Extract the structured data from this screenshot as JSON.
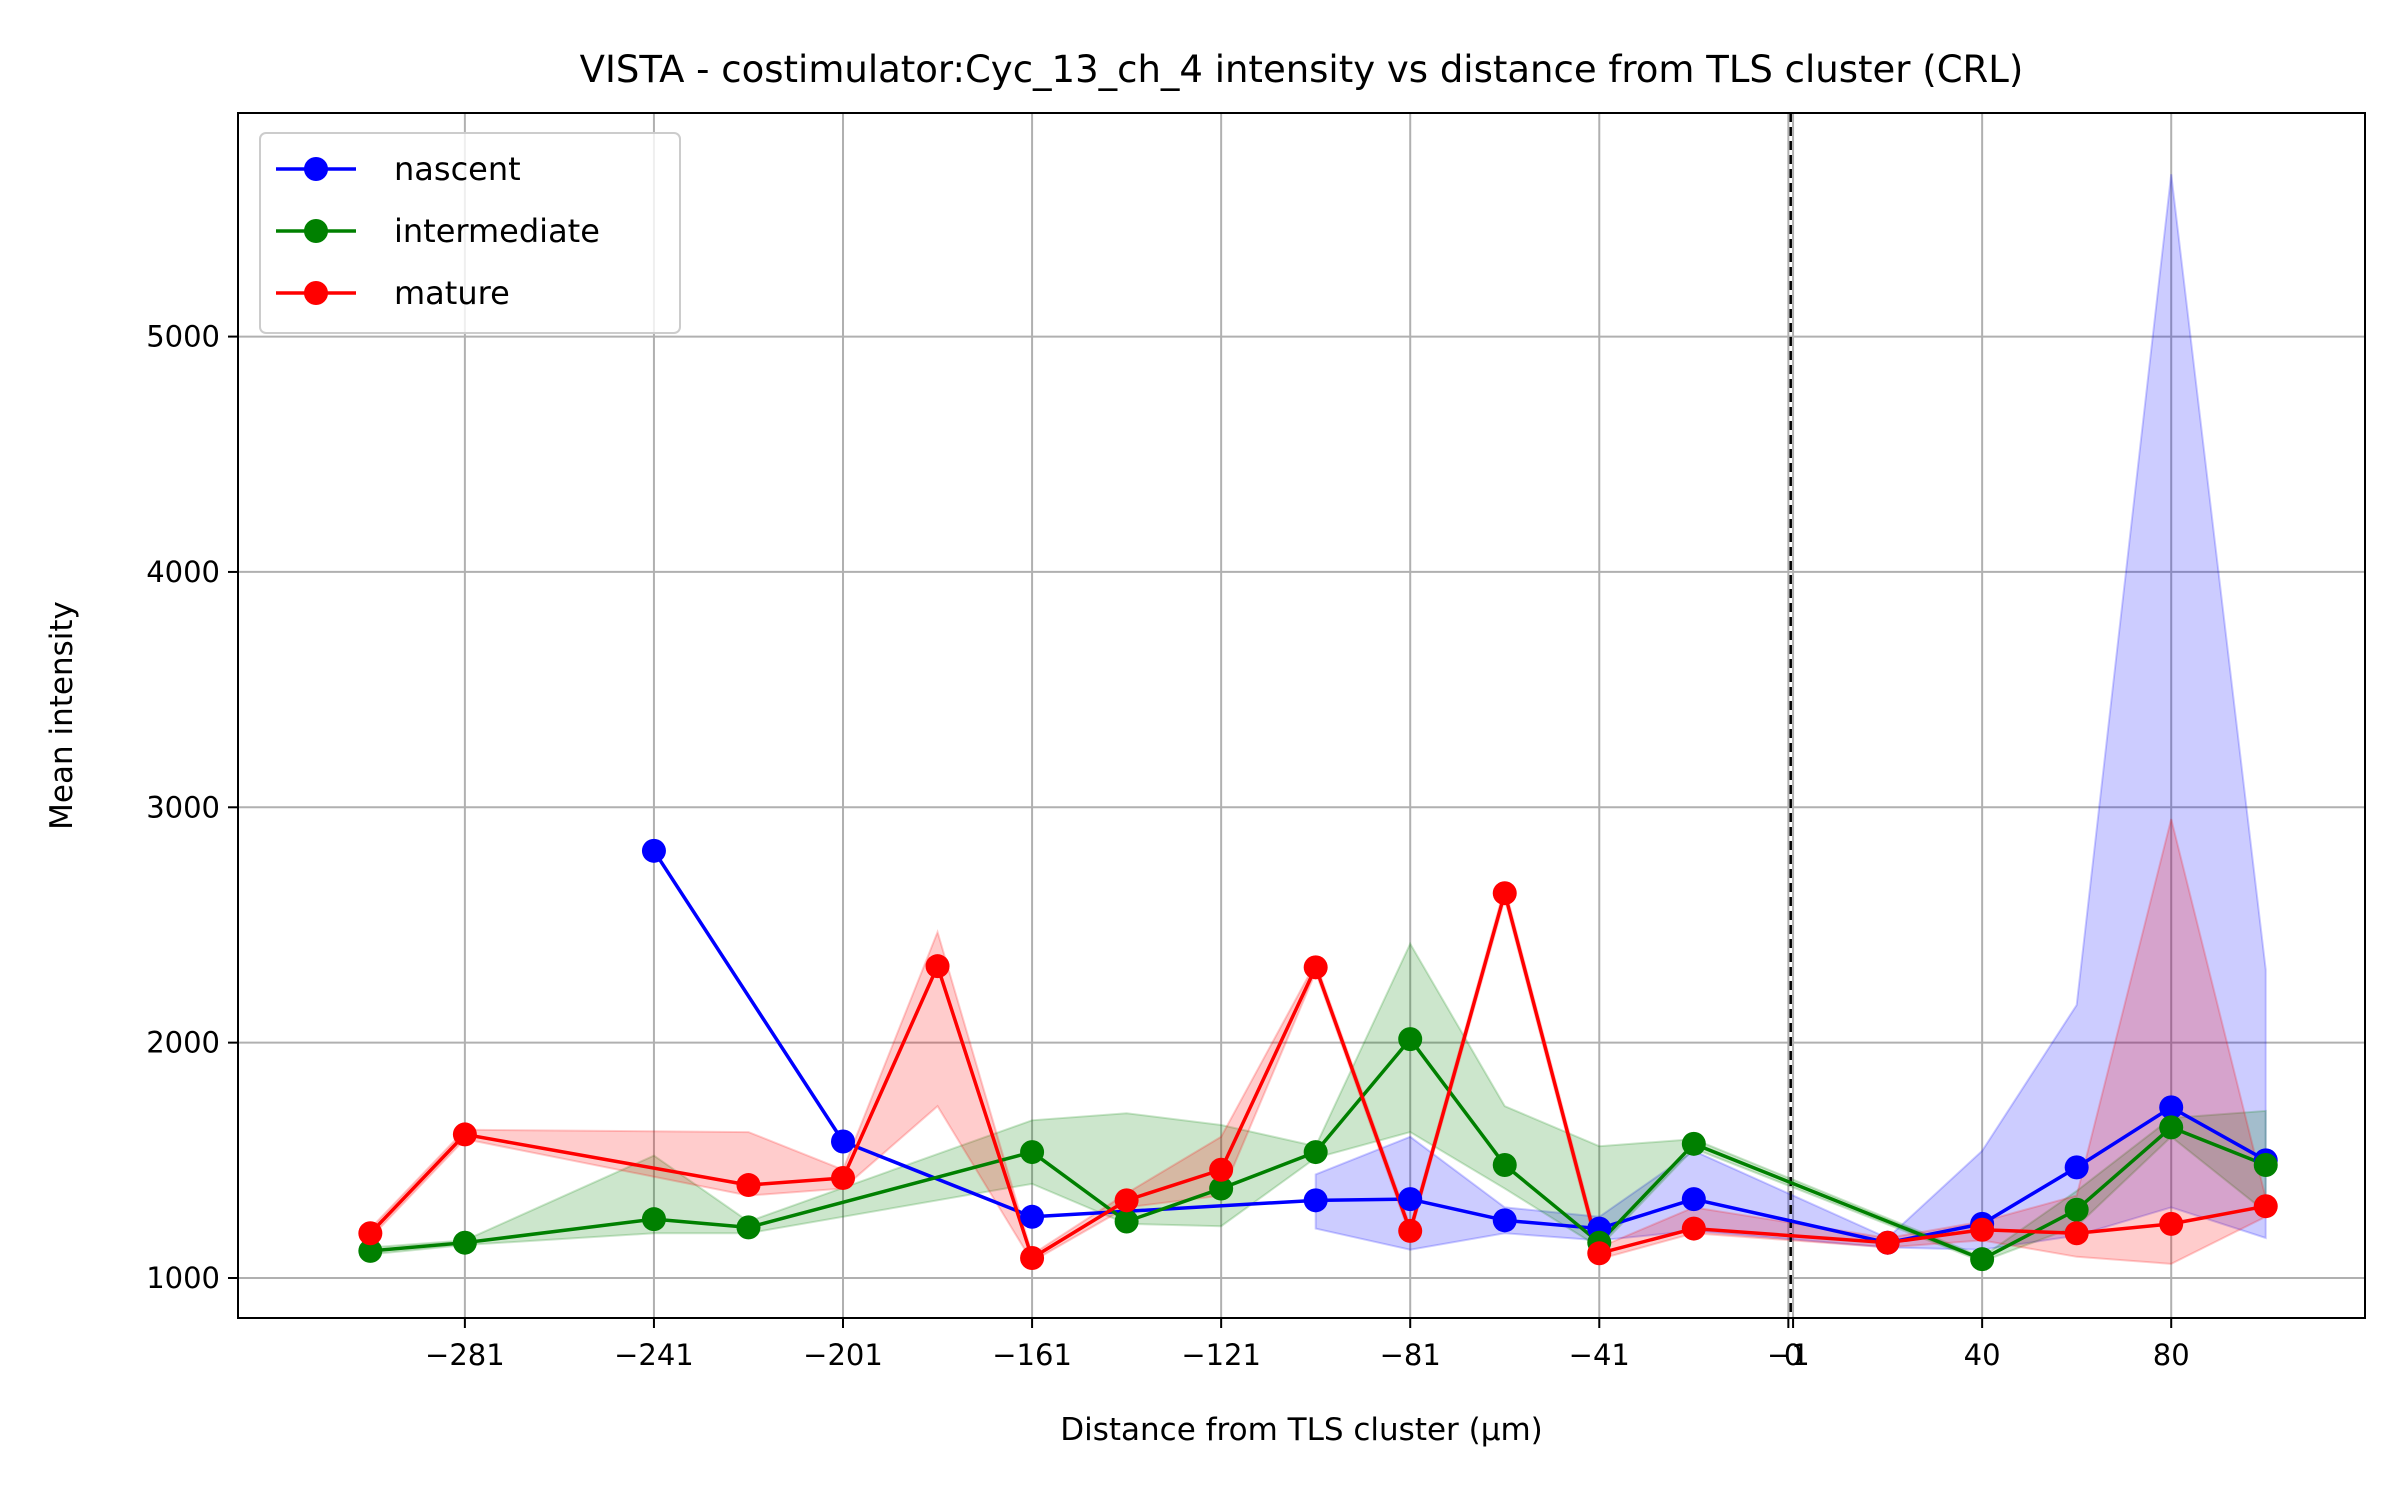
{
  "chart_data": {
    "type": "line",
    "title": "VISTA - costimulator:Cyc_13_ch_4 intensity vs distance from TLS cluster (CRL)",
    "xlabel": "Distance from TLS cluster (μm)",
    "ylabel": "Mean intensity",
    "xlim": [
      -329,
      121
    ],
    "ylim": [
      830,
      5950
    ],
    "grid": true,
    "legend_position": "top-left",
    "x_ticks": [
      {
        "value": -281,
        "label": "−281"
      },
      {
        "value": -241,
        "label": "−241"
      },
      {
        "value": -201,
        "label": "−201"
      },
      {
        "value": -161,
        "label": "−161"
      },
      {
        "value": -121,
        "label": "−121"
      },
      {
        "value": -81,
        "label": "−81"
      },
      {
        "value": -41,
        "label": "−41"
      },
      {
        "value": -1,
        "label": "−1"
      },
      {
        "value": 0,
        "label": "0"
      },
      {
        "value": 40,
        "label": "40"
      },
      {
        "value": 80,
        "label": "80"
      }
    ],
    "y_ticks": [
      {
        "value": 1000,
        "label": "1000"
      },
      {
        "value": 2000,
        "label": "2000"
      },
      {
        "value": 3000,
        "label": "3000"
      },
      {
        "value": 4000,
        "label": "4000"
      },
      {
        "value": 5000,
        "label": "5000"
      }
    ],
    "reference_line_x": -0.5,
    "series": [
      {
        "name": "nascent",
        "color": "#0000ff",
        "points": [
          {
            "x": -241,
            "y": 2815
          },
          {
            "x": -201,
            "y": 1580
          },
          {
            "x": -161,
            "y": 1260
          },
          {
            "x": -101,
            "y": 1330
          },
          {
            "x": -81,
            "y": 1335
          },
          {
            "x": -61,
            "y": 1245
          },
          {
            "x": -41,
            "y": 1210
          },
          {
            "x": -21,
            "y": 1335
          },
          {
            "x": 20,
            "y": 1150
          },
          {
            "x": 40,
            "y": 1230
          },
          {
            "x": 60,
            "y": 1470
          },
          {
            "x": 80,
            "y": 1725
          },
          {
            "x": 100,
            "y": 1500
          }
        ],
        "band": [
          {
            "x": -101,
            "lo": 1210,
            "hi": 1440
          },
          {
            "x": -81,
            "lo": 1120,
            "hi": 1600
          },
          {
            "x": -61,
            "lo": 1190,
            "hi": 1300
          },
          {
            "x": -41,
            "lo": 1160,
            "hi": 1260
          },
          {
            "x": -21,
            "lo": 1200,
            "hi": 1540
          },
          {
            "x": 20,
            "lo": 1130,
            "hi": 1170
          },
          {
            "x": 40,
            "lo": 1120,
            "hi": 1540
          },
          {
            "x": 60,
            "lo": 1180,
            "hi": 2160
          },
          {
            "x": 80,
            "lo": 1300,
            "hi": 5690
          },
          {
            "x": 100,
            "lo": 1170,
            "hi": 2310
          }
        ]
      },
      {
        "name": "intermediate",
        "color": "#008000",
        "points": [
          {
            "x": -301,
            "y": 1115
          },
          {
            "x": -281,
            "y": 1150
          },
          {
            "x": -241,
            "y": 1250
          },
          {
            "x": -221,
            "y": 1215
          },
          {
            "x": -161,
            "y": 1535
          },
          {
            "x": -141,
            "y": 1240
          },
          {
            "x": -121,
            "y": 1380
          },
          {
            "x": -101,
            "y": 1535
          },
          {
            "x": -81,
            "y": 2015
          },
          {
            "x": -61,
            "y": 1480
          },
          {
            "x": -41,
            "y": 1150
          },
          {
            "x": -21,
            "y": 1570
          },
          {
            "x": 40,
            "y": 1080
          },
          {
            "x": 60,
            "y": 1290
          },
          {
            "x": 80,
            "y": 1640
          },
          {
            "x": 100,
            "y": 1480
          }
        ],
        "band": [
          {
            "x": -301,
            "lo": 1100,
            "hi": 1130
          },
          {
            "x": -281,
            "lo": 1140,
            "hi": 1160
          },
          {
            "x": -241,
            "lo": 1190,
            "hi": 1520
          },
          {
            "x": -221,
            "lo": 1190,
            "hi": 1240
          },
          {
            "x": -161,
            "lo": 1400,
            "hi": 1670
          },
          {
            "x": -141,
            "lo": 1230,
            "hi": 1700
          },
          {
            "x": -121,
            "lo": 1220,
            "hi": 1650
          },
          {
            "x": -101,
            "lo": 1510,
            "hi": 1560
          },
          {
            "x": -81,
            "lo": 1620,
            "hi": 2420
          },
          {
            "x": -61,
            "lo": 1380,
            "hi": 1730
          },
          {
            "x": -41,
            "lo": 1130,
            "hi": 1560
          },
          {
            "x": -21,
            "lo": 1550,
            "hi": 1590
          },
          {
            "x": 40,
            "lo": 1070,
            "hi": 1090
          },
          {
            "x": 60,
            "lo": 1220,
            "hi": 1370
          },
          {
            "x": 80,
            "lo": 1600,
            "hi": 1680
          },
          {
            "x": 100,
            "lo": 1280,
            "hi": 1710
          }
        ]
      },
      {
        "name": "mature",
        "color": "#ff0000",
        "points": [
          {
            "x": -301,
            "y": 1190
          },
          {
            "x": -281,
            "y": 1610
          },
          {
            "x": -221,
            "y": 1395
          },
          {
            "x": -201,
            "y": 1425
          },
          {
            "x": -181,
            "y": 2325
          },
          {
            "x": -161,
            "y": 1085
          },
          {
            "x": -141,
            "y": 1330
          },
          {
            "x": -121,
            "y": 1460
          },
          {
            "x": -101,
            "y": 2320
          },
          {
            "x": -81,
            "y": 1200
          },
          {
            "x": -61,
            "y": 2635
          },
          {
            "x": -41,
            "y": 1105
          },
          {
            "x": -21,
            "y": 1210
          },
          {
            "x": 20,
            "y": 1150
          },
          {
            "x": 40,
            "y": 1205
          },
          {
            "x": 60,
            "y": 1190
          },
          {
            "x": 80,
            "y": 1230
          },
          {
            "x": 100,
            "y": 1305
          }
        ],
        "band": [
          {
            "x": -301,
            "lo": 1170,
            "hi": 1210
          },
          {
            "x": -281,
            "lo": 1590,
            "hi": 1630
          },
          {
            "x": -221,
            "lo": 1350,
            "hi": 1620
          },
          {
            "x": -201,
            "lo": 1380,
            "hi": 1460
          },
          {
            "x": -181,
            "lo": 1730,
            "hi": 2470
          },
          {
            "x": -161,
            "lo": 1070,
            "hi": 1100
          },
          {
            "x": -141,
            "lo": 1300,
            "hi": 1360
          },
          {
            "x": -121,
            "lo": 1350,
            "hi": 1600
          },
          {
            "x": -101,
            "lo": 2300,
            "hi": 2340
          },
          {
            "x": -81,
            "lo": 1180,
            "hi": 1220
          },
          {
            "x": -61,
            "lo": 2610,
            "hi": 2660
          },
          {
            "x": -41,
            "lo": 1080,
            "hi": 1130
          },
          {
            "x": -21,
            "lo": 1190,
            "hi": 1300
          },
          {
            "x": 20,
            "lo": 1130,
            "hi": 1170
          },
          {
            "x": 40,
            "lo": 1160,
            "hi": 1240
          },
          {
            "x": 60,
            "lo": 1090,
            "hi": 1350
          },
          {
            "x": 80,
            "lo": 1060,
            "hi": 2950
          },
          {
            "x": 100,
            "lo": 1260,
            "hi": 1340
          }
        ]
      }
    ]
  }
}
